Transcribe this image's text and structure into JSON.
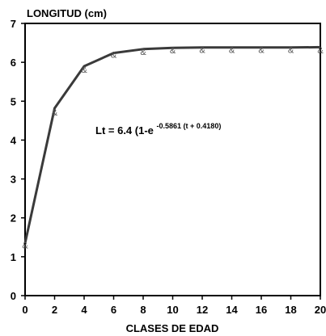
{
  "chart_data": {
    "type": "line",
    "title": "",
    "ylabel": "LONGITUD (cm)",
    "xlabel": "CLASES DE EDAD",
    "xlim": [
      0,
      20
    ],
    "ylim": [
      0,
      7
    ],
    "xticks": [
      "0",
      "2",
      "4",
      "6",
      "8",
      "10",
      "12",
      "14",
      "16",
      "18",
      "20"
    ],
    "yticks": [
      "0",
      "1",
      "2",
      "3",
      "4",
      "5",
      "6",
      "7"
    ],
    "grid": false,
    "legend": "none",
    "series": [
      {
        "kind": "fitted-curve",
        "color": "#3a3a3a",
        "x": [
          0,
          2,
          4,
          6,
          8,
          10,
          12,
          14,
          16,
          18,
          20
        ],
        "y": [
          1.35,
          4.82,
          5.9,
          6.24,
          6.34,
          6.37,
          6.38,
          6.38,
          6.38,
          6.38,
          6.39
        ]
      },
      {
        "kind": "observed",
        "marker_glyph": "&",
        "color": "#555555",
        "x": [
          0,
          2,
          4,
          6,
          8,
          10,
          12,
          14,
          16,
          18,
          20
        ],
        "y": [
          1.3,
          4.72,
          5.82,
          6.2,
          6.27,
          6.31,
          6.32,
          6.32,
          6.32,
          6.32,
          6.31
        ]
      }
    ],
    "annotation": {
      "lead": "Lt = 6.4 (1-e",
      "exponent": "-0.5861 (t + 0.4180)"
    }
  }
}
